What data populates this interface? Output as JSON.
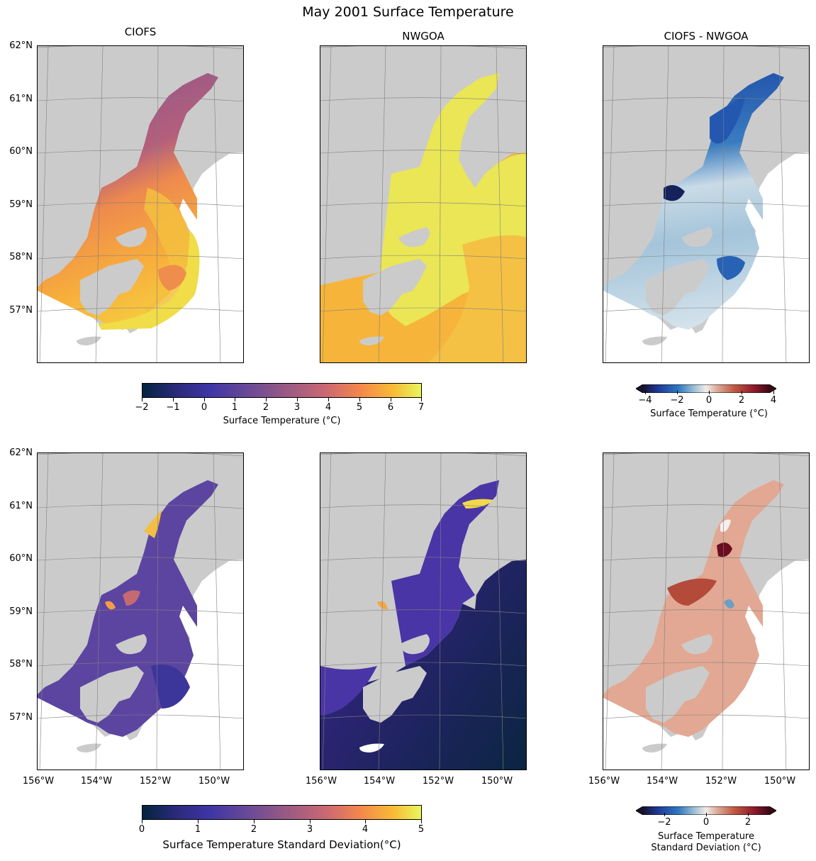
{
  "title": "May 2001 Surface Temperature",
  "panel_titles": [
    "CIOFS",
    "NWGOA",
    "CIOFS - NWGOA"
  ],
  "lat_labels": [
    "62°N",
    "61°N",
    "60°N",
    "59°N",
    "58°N",
    "57°N"
  ],
  "lon_labels": [
    "156°W",
    "154°W",
    "152°W",
    "150°W"
  ],
  "colorbars": {
    "temp": {
      "ticks": [
        "−2",
        "−1",
        "0",
        "1",
        "2",
        "3",
        "4",
        "5",
        "6",
        "7"
      ],
      "label": "Surface Temperature (°C)",
      "colormap": "thermal",
      "range": [
        -2,
        7
      ]
    },
    "temp_diff": {
      "ticks": [
        "−4",
        "−2",
        "0",
        "2",
        "4"
      ],
      "label": "Surface Temperature (°C)",
      "colormap": "balance",
      "range": [
        -4,
        4
      ]
    },
    "std": {
      "ticks": [
        "0",
        "1",
        "2",
        "3",
        "4",
        "5"
      ],
      "label": "Surface Temperature Standard Deviation(°C)",
      "colormap": "thermal",
      "range": [
        0,
        5
      ]
    },
    "std_diff": {
      "ticks": [
        "−2",
        "0",
        "2"
      ],
      "label_line1": "Surface Temperature",
      "label_line2": "Standard Deviation (°C)",
      "colormap": "balance",
      "range": [
        -3,
        3
      ]
    }
  },
  "colors": {
    "land": "#cbcbcb",
    "ocean_blank": "#ffffff",
    "gridline": "#808080"
  }
}
